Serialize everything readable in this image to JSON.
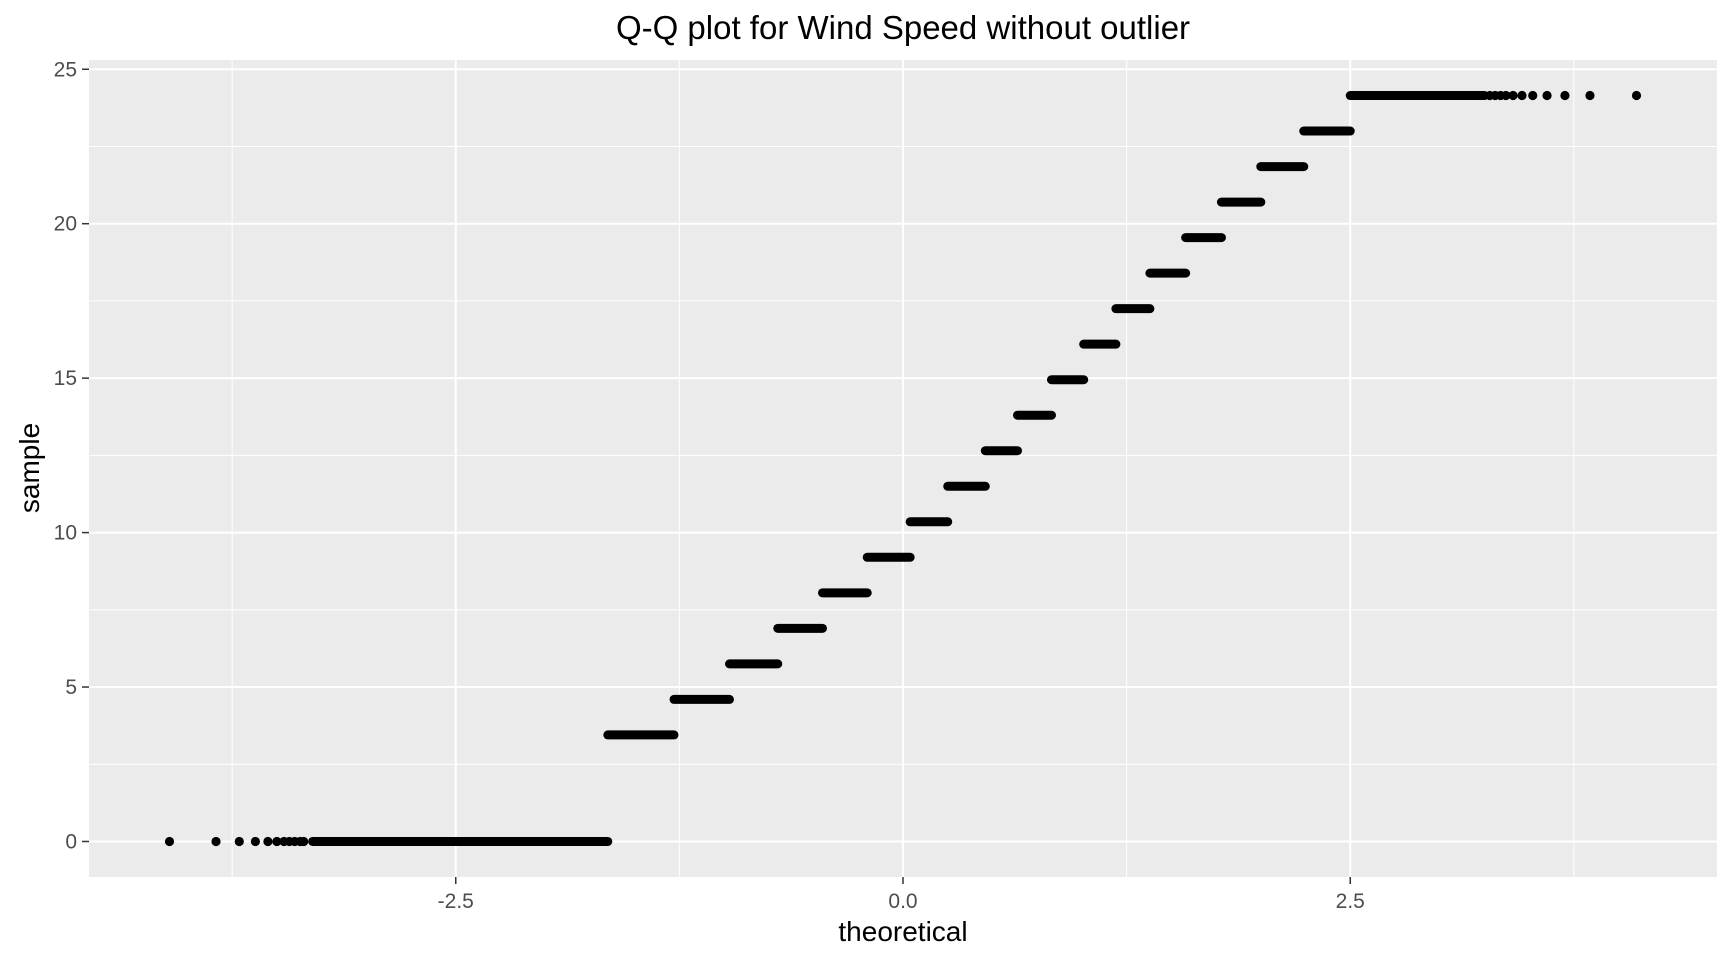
{
  "chart_data": {
    "type": "scatter",
    "title": "Q-Q plot for Wind Speed without outlier",
    "xlabel": "theoretical",
    "ylabel": "sample",
    "xlim": [
      -4.55,
      4.55
    ],
    "ylim": [
      -1.15,
      25.3
    ],
    "x_ticks": [
      -2.5,
      0.0,
      2.5
    ],
    "x_tick_labels": [
      "-2.5",
      "0.0",
      "2.5"
    ],
    "y_ticks": [
      0,
      5,
      10,
      15,
      20,
      25
    ],
    "y_tick_labels": [
      "0",
      "5",
      "10",
      "15",
      "20",
      "25"
    ],
    "grid": true,
    "legend": "none",
    "colors": {
      "panel": "#ebebeb",
      "grid": "#ffffff",
      "point": "#000000",
      "tick_text": "#4d4d4d"
    },
    "steps": [
      {
        "y": 0.0,
        "x_start": -3.3,
        "x_end": -1.65
      },
      {
        "y": 3.45,
        "x_start": -1.65,
        "x_end": -1.28
      },
      {
        "y": 4.6,
        "x_start": -1.28,
        "x_end": -0.97
      },
      {
        "y": 5.75,
        "x_start": -0.97,
        "x_end": -0.7
      },
      {
        "y": 6.9,
        "x_start": -0.7,
        "x_end": -0.45
      },
      {
        "y": 8.05,
        "x_start": -0.45,
        "x_end": -0.2
      },
      {
        "y": 9.2,
        "x_start": -0.2,
        "x_end": 0.04
      },
      {
        "y": 10.35,
        "x_start": 0.04,
        "x_end": 0.25
      },
      {
        "y": 11.5,
        "x_start": 0.25,
        "x_end": 0.46
      },
      {
        "y": 12.65,
        "x_start": 0.46,
        "x_end": 0.64
      },
      {
        "y": 13.8,
        "x_start": 0.64,
        "x_end": 0.83
      },
      {
        "y": 14.95,
        "x_start": 0.83,
        "x_end": 1.01
      },
      {
        "y": 16.1,
        "x_start": 1.01,
        "x_end": 1.19
      },
      {
        "y": 17.25,
        "x_start": 1.19,
        "x_end": 1.38
      },
      {
        "y": 18.4,
        "x_start": 1.38,
        "x_end": 1.58
      },
      {
        "y": 19.55,
        "x_start": 1.58,
        "x_end": 1.78
      },
      {
        "y": 20.7,
        "x_start": 1.78,
        "x_end": 2.0
      },
      {
        "y": 21.85,
        "x_start": 2.0,
        "x_end": 2.24
      },
      {
        "y": 23.0,
        "x_start": 2.24,
        "x_end": 2.5
      },
      {
        "y": 24.15,
        "x_start": 2.5,
        "x_end": 3.25
      }
    ],
    "tail_points": [
      {
        "x": -4.1,
        "y": 0.0
      },
      {
        "x": -3.84,
        "y": 0.0
      },
      {
        "x": -3.71,
        "y": 0.0
      },
      {
        "x": -3.62,
        "y": 0.0
      },
      {
        "x": -3.55,
        "y": 0.0
      },
      {
        "x": -3.5,
        "y": 0.0
      },
      {
        "x": -3.46,
        "y": 0.0
      },
      {
        "x": -3.43,
        "y": 0.0
      },
      {
        "x": -3.4,
        "y": 0.0
      },
      {
        "x": -3.37,
        "y": 0.0
      },
      {
        "x": -3.35,
        "y": 0.0
      },
      {
        "x": 3.28,
        "y": 24.15
      },
      {
        "x": 3.31,
        "y": 24.15
      },
      {
        "x": 3.34,
        "y": 24.15
      },
      {
        "x": 3.37,
        "y": 24.15
      },
      {
        "x": 3.41,
        "y": 24.15
      },
      {
        "x": 3.46,
        "y": 24.15
      },
      {
        "x": 3.52,
        "y": 24.15
      },
      {
        "x": 3.6,
        "y": 24.15
      },
      {
        "x": 3.7,
        "y": 24.15
      },
      {
        "x": 3.84,
        "y": 24.15
      },
      {
        "x": 4.1,
        "y": 24.15
      }
    ]
  }
}
